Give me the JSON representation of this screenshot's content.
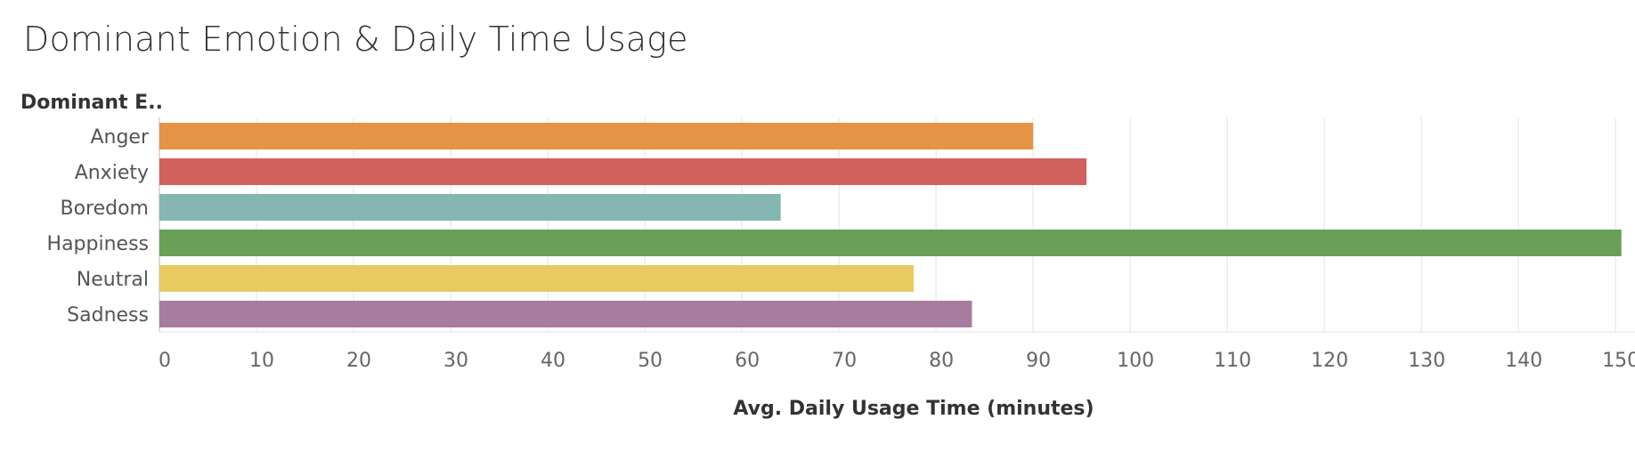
{
  "chart_data": {
    "type": "bar",
    "orientation": "horizontal",
    "title": "Dominant Emotion & Daily Time Usage",
    "row_header": "Dominant E..",
    "xlabel": "Avg. Daily Usage Time (minutes)",
    "ylabel": "",
    "categories": [
      "Anger",
      "Anxiety",
      "Boredom",
      "Happiness",
      "Neutral",
      "Sadness"
    ],
    "values": [
      90.0,
      95.5,
      64.0,
      150.6,
      77.7,
      83.7
    ],
    "colors": [
      "#E49444",
      "#D1615D",
      "#85B6B2",
      "#6A9F58",
      "#E7CA60",
      "#A87C9F"
    ],
    "xlim": [
      0,
      152
    ],
    "x_ticks": [
      0,
      10,
      20,
      30,
      40,
      50,
      60,
      70,
      80,
      90,
      100,
      110,
      120,
      130,
      140,
      150
    ],
    "grid": true
  }
}
